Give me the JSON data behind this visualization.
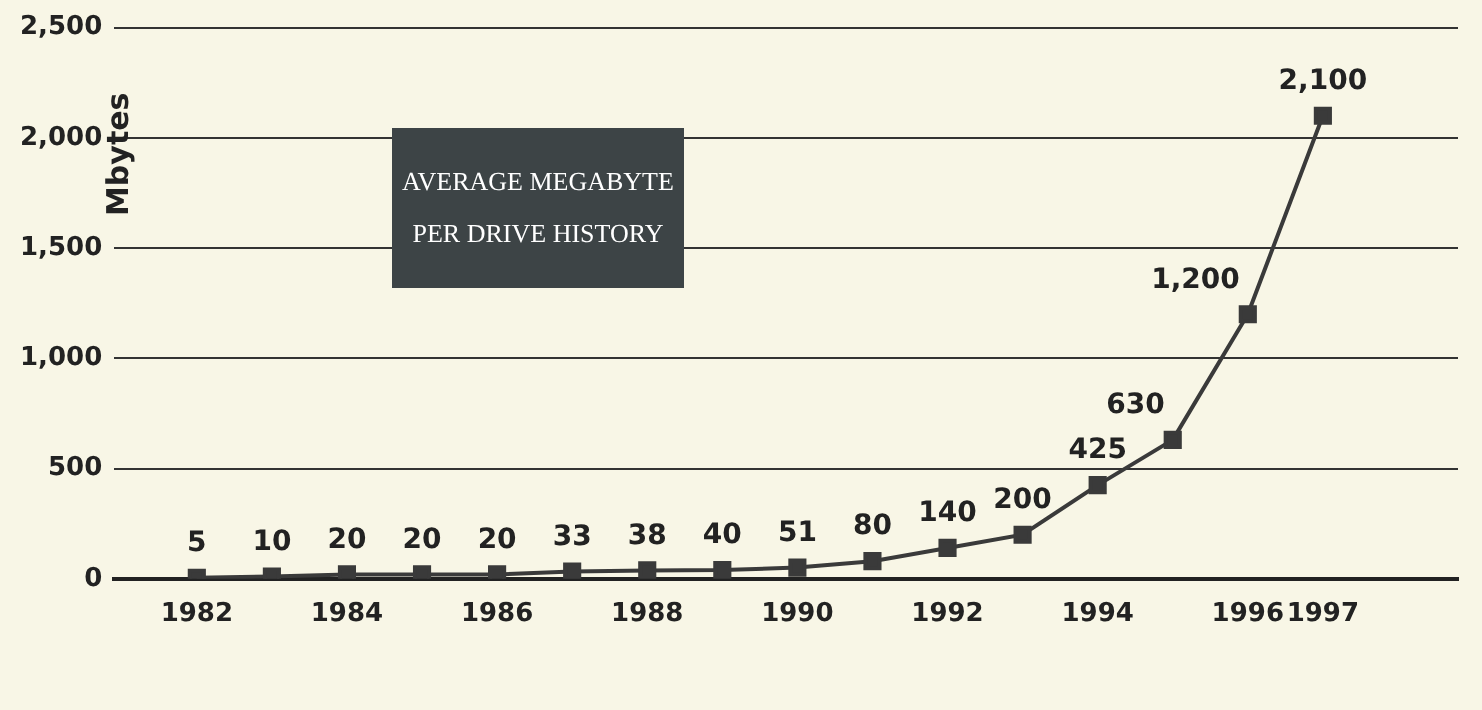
{
  "chart_data": {
    "type": "line",
    "title": "AVERAGE MEGABYTE PER DRIVE HISTORY",
    "ylabel": "Mbytes",
    "x": [
      1982,
      1983,
      1984,
      1985,
      1986,
      1987,
      1988,
      1989,
      1990,
      1991,
      1992,
      1993,
      1994,
      1995,
      1996,
      1997
    ],
    "series": [
      {
        "color": "#3a3a3a",
        "values": [
          5,
          10,
          20,
          20,
          20,
          33,
          38,
          40,
          51,
          80,
          140,
          200,
          425,
          630,
          1200,
          2100
        ],
        "value_labels": [
          "5",
          "10",
          "20",
          "20",
          "20",
          "33",
          "38",
          "40",
          "51",
          "80",
          "140",
          "200",
          "425",
          "630",
          "1,200",
          "2,100"
        ]
      }
    ],
    "xlim": [
      1980.9,
      1998.8
    ],
    "xticks": [
      1982,
      1984,
      1986,
      1988,
      1990,
      1992,
      1994,
      1996,
      1997
    ],
    "ylim": [
      0,
      2500
    ],
    "yticks": [
      0,
      500,
      {
        "value": 1000,
        "label": "1,000"
      },
      {
        "value": 1500,
        "label": "1,500"
      },
      {
        "value": 2000,
        "label": "2,000"
      },
      {
        "value": 2500,
        "label": "2,500"
      }
    ],
    "grid": "y",
    "legend": false,
    "marker": "square",
    "line_style": "solid"
  }
}
